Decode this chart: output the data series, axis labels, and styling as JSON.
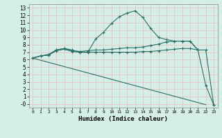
{
  "xlabel": "Humidex (Indice chaleur)",
  "bg_color": "#d4eee8",
  "grid_color": "#e8c8c8",
  "line_color": "#2a6e65",
  "xlim": [
    -0.5,
    23.5
  ],
  "ylim": [
    -0.5,
    13.5
  ],
  "xticks": [
    0,
    1,
    2,
    3,
    4,
    5,
    6,
    7,
    8,
    9,
    10,
    11,
    12,
    13,
    14,
    15,
    16,
    17,
    18,
    19,
    20,
    21,
    22,
    23
  ],
  "yticks": [
    0,
    1,
    2,
    3,
    4,
    5,
    6,
    7,
    8,
    9,
    10,
    11,
    12,
    13
  ],
  "ytick_labels": [
    "-0",
    "1",
    "2",
    "3",
    "4",
    "5",
    "6",
    "7",
    "8",
    "9",
    "10",
    "11",
    "12",
    "13"
  ],
  "curve1_x": [
    0,
    1,
    2,
    3,
    4,
    5,
    6,
    7,
    8,
    9,
    10,
    11,
    12,
    13,
    14,
    15,
    16,
    17,
    18,
    19,
    20,
    21,
    22,
    23
  ],
  "curve1_y": [
    6.2,
    6.5,
    6.6,
    7.3,
    7.5,
    7.3,
    7.0,
    7.0,
    8.8,
    9.7,
    10.9,
    11.8,
    12.3,
    12.6,
    11.7,
    10.2,
    9.0,
    8.7,
    8.5,
    8.5,
    8.5,
    7.3,
    2.5,
    -0.1
  ],
  "curve2_x": [
    0,
    1,
    2,
    3,
    4,
    5,
    6,
    7,
    8,
    9,
    10,
    11,
    12,
    13,
    14,
    15,
    16,
    17,
    18,
    19,
    20,
    21,
    22,
    23
  ],
  "curve2_y": [
    6.2,
    6.5,
    6.7,
    7.3,
    7.5,
    7.2,
    7.1,
    7.2,
    7.3,
    7.3,
    7.4,
    7.5,
    7.6,
    7.6,
    7.7,
    7.9,
    8.1,
    8.4,
    8.5,
    8.5,
    8.5,
    7.3,
    7.3,
    -0.1
  ],
  "curve3_x": [
    0,
    22
  ],
  "curve3_y": [
    6.2,
    -0.1
  ],
  "curve4_x": [
    0,
    1,
    2,
    3,
    4,
    5,
    6,
    7,
    8,
    9,
    10,
    11,
    12,
    13,
    14,
    15,
    16,
    17,
    18,
    19,
    20,
    21
  ],
  "curve4_y": [
    6.2,
    6.5,
    6.6,
    7.2,
    7.4,
    7.1,
    7.0,
    7.0,
    7.0,
    7.0,
    7.0,
    7.0,
    7.0,
    7.0,
    7.1,
    7.1,
    7.2,
    7.3,
    7.4,
    7.5,
    7.5,
    7.3
  ]
}
